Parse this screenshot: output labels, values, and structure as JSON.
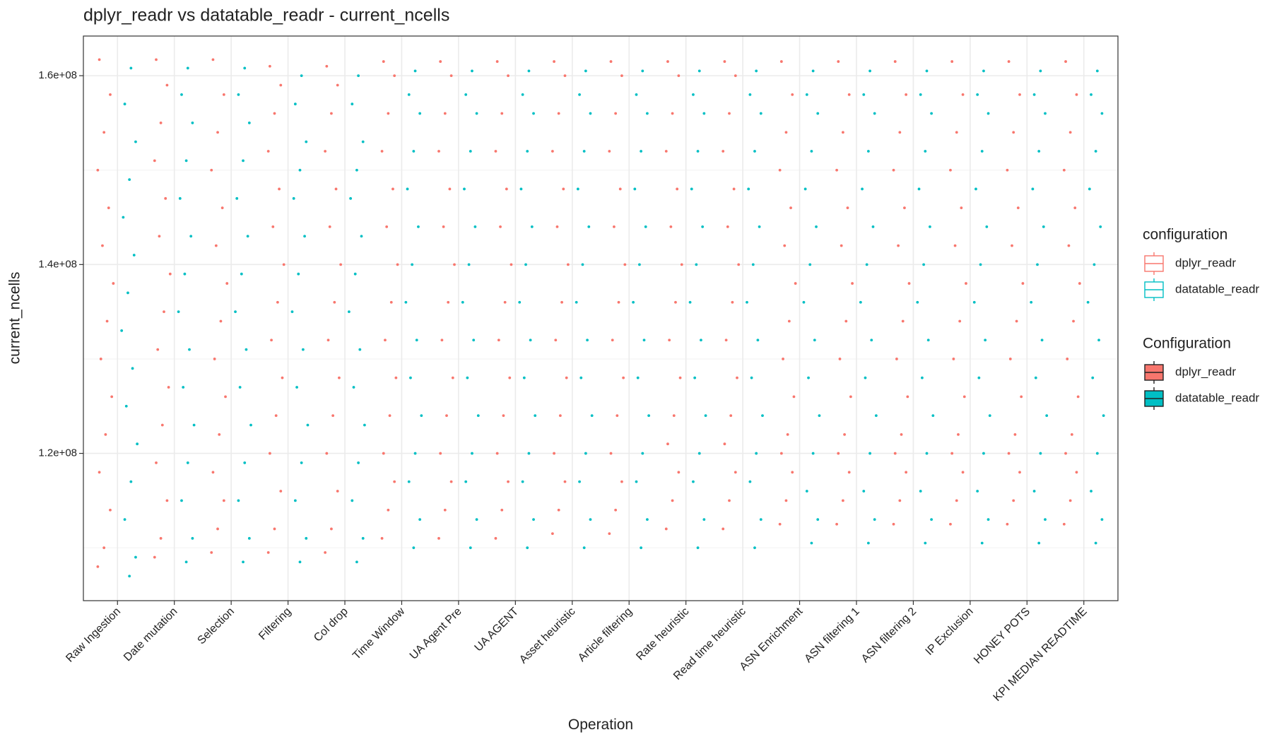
{
  "chart_data": {
    "type": "strip",
    "title": "dplyr_readr vs datatable_readr - current_ncells",
    "x_label": "Operation",
    "y_label": "current_ncells",
    "categories": [
      "Raw Ingestion",
      "Date mutation",
      "Selection",
      "Filtering",
      "Col drop",
      "Time Window",
      "UA Agent Pre",
      "UA AGENT",
      "Asset heuristic",
      "Article filtering",
      "Rate heuristic",
      "Read time heuristic",
      "ASN Enrichment",
      "ASN filtering 1",
      "ASN filtering 2",
      "IP Exclusion",
      "HONEY POTS",
      "KPI MEDIAN READTIME"
    ],
    "ylim": [
      104400000.0,
      164200000.0
    ],
    "yticks": [
      {
        "value": 120000000.0,
        "label": "1.2e+08"
      },
      {
        "value": 140000000.0,
        "label": "1.4e+08"
      },
      {
        "value": 160000000.0,
        "label": "1.6e+08"
      }
    ],
    "minor_yticks": [
      110000000.0,
      130000000.0,
      150000000.0
    ],
    "grid": true,
    "legends": [
      {
        "title": "configuration",
        "style": "outline"
      },
      {
        "title": "Configuration",
        "style": "filled"
      }
    ],
    "series": [
      {
        "name": "dplyr_readr",
        "color": "#f8766d",
        "values": [
          [
            108000000.0,
            110000000.0,
            114000000.0,
            118000000.0,
            122000000.0,
            126000000.0,
            130000000.0,
            134000000.0,
            138000000.0,
            142000000.0,
            146000000.0,
            150000000.0,
            154000000.0,
            158000000.0,
            161700000.0
          ],
          [
            109000000.0,
            111000000.0,
            115000000.0,
            119000000.0,
            123000000.0,
            127000000.0,
            131000000.0,
            135000000.0,
            139000000.0,
            143000000.0,
            147000000.0,
            151000000.0,
            155000000.0,
            159000000.0,
            161700000.0
          ],
          [
            109500000.0,
            112000000.0,
            115000000.0,
            118000000.0,
            122000000.0,
            126000000.0,
            130000000.0,
            134000000.0,
            138000000.0,
            142000000.0,
            146000000.0,
            150000000.0,
            154000000.0,
            158000000.0,
            161700000.0
          ],
          [
            109500000.0,
            112000000.0,
            116000000.0,
            120000000.0,
            124000000.0,
            128000000.0,
            132000000.0,
            136000000.0,
            140000000.0,
            144000000.0,
            148000000.0,
            152000000.0,
            156000000.0,
            159000000.0,
            161000000.0
          ],
          [
            109500000.0,
            112000000.0,
            116000000.0,
            120000000.0,
            124000000.0,
            128000000.0,
            132000000.0,
            136000000.0,
            140000000.0,
            144000000.0,
            148000000.0,
            152000000.0,
            156000000.0,
            159000000.0,
            161000000.0
          ],
          [
            111000000.0,
            114000000.0,
            117000000.0,
            120000000.0,
            124000000.0,
            128000000.0,
            132000000.0,
            136000000.0,
            140000000.0,
            144000000.0,
            148000000.0,
            152000000.0,
            156000000.0,
            160000000.0,
            161500000.0
          ],
          [
            111000000.0,
            114000000.0,
            117000000.0,
            120000000.0,
            124000000.0,
            128000000.0,
            132000000.0,
            136000000.0,
            140000000.0,
            144000000.0,
            148000000.0,
            152000000.0,
            156000000.0,
            160000000.0,
            161500000.0
          ],
          [
            111000000.0,
            114000000.0,
            117000000.0,
            120000000.0,
            124000000.0,
            128000000.0,
            132000000.0,
            136000000.0,
            140000000.0,
            144000000.0,
            148000000.0,
            152000000.0,
            156000000.0,
            160000000.0,
            161500000.0
          ],
          [
            111500000.0,
            114000000.0,
            117000000.0,
            120000000.0,
            124000000.0,
            128000000.0,
            132000000.0,
            136000000.0,
            140000000.0,
            144000000.0,
            148000000.0,
            152000000.0,
            156000000.0,
            160000000.0,
            161500000.0
          ],
          [
            111500000.0,
            114000000.0,
            117000000.0,
            120000000.0,
            124000000.0,
            128000000.0,
            132000000.0,
            136000000.0,
            140000000.0,
            144000000.0,
            148000000.0,
            152000000.0,
            156000000.0,
            160000000.0,
            161500000.0
          ],
          [
            112000000.0,
            115000000.0,
            118000000.0,
            121000000.0,
            124000000.0,
            128000000.0,
            132000000.0,
            136000000.0,
            140000000.0,
            144000000.0,
            148000000.0,
            152000000.0,
            156000000.0,
            160000000.0,
            161500000.0
          ],
          [
            112000000.0,
            115000000.0,
            118000000.0,
            121000000.0,
            124000000.0,
            128000000.0,
            132000000.0,
            136000000.0,
            140000000.0,
            144000000.0,
            148000000.0,
            152000000.0,
            156000000.0,
            160000000.0,
            161500000.0
          ],
          [
            112500000.0,
            115000000.0,
            118000000.0,
            120000000.0,
            122000000.0,
            126000000.0,
            130000000.0,
            134000000.0,
            138000000.0,
            142000000.0,
            146000000.0,
            150000000.0,
            154000000.0,
            158000000.0,
            161500000.0
          ],
          [
            112500000.0,
            115000000.0,
            118000000.0,
            120000000.0,
            122000000.0,
            126000000.0,
            130000000.0,
            134000000.0,
            138000000.0,
            142000000.0,
            146000000.0,
            150000000.0,
            154000000.0,
            158000000.0,
            161500000.0
          ],
          [
            112500000.0,
            115000000.0,
            118000000.0,
            120000000.0,
            122000000.0,
            126000000.0,
            130000000.0,
            134000000.0,
            138000000.0,
            142000000.0,
            146000000.0,
            150000000.0,
            154000000.0,
            158000000.0,
            161500000.0
          ],
          [
            112500000.0,
            115000000.0,
            118000000.0,
            120000000.0,
            122000000.0,
            126000000.0,
            130000000.0,
            134000000.0,
            138000000.0,
            142000000.0,
            146000000.0,
            150000000.0,
            154000000.0,
            158000000.0,
            161500000.0
          ],
          [
            112500000.0,
            115000000.0,
            118000000.0,
            120000000.0,
            122000000.0,
            126000000.0,
            130000000.0,
            134000000.0,
            138000000.0,
            142000000.0,
            146000000.0,
            150000000.0,
            154000000.0,
            158000000.0,
            161500000.0
          ],
          [
            112500000.0,
            115000000.0,
            118000000.0,
            120000000.0,
            122000000.0,
            126000000.0,
            130000000.0,
            134000000.0,
            138000000.0,
            142000000.0,
            146000000.0,
            150000000.0,
            154000000.0,
            158000000.0,
            161500000.0
          ]
        ]
      },
      {
        "name": "datatable_readr",
        "color": "#00bfc4",
        "values": [
          [
            107000000.0,
            109000000.0,
            113000000.0,
            117000000.0,
            121000000.0,
            125000000.0,
            129000000.0,
            133000000.0,
            137000000.0,
            141000000.0,
            145000000.0,
            149000000.0,
            153000000.0,
            157000000.0,
            160800000.0
          ],
          [
            108500000.0,
            111000000.0,
            115000000.0,
            119000000.0,
            123000000.0,
            127000000.0,
            131000000.0,
            135000000.0,
            139000000.0,
            143000000.0,
            147000000.0,
            151000000.0,
            155000000.0,
            158000000.0,
            160800000.0
          ],
          [
            108500000.0,
            111000000.0,
            115000000.0,
            119000000.0,
            123000000.0,
            127000000.0,
            131000000.0,
            135000000.0,
            139000000.0,
            143000000.0,
            147000000.0,
            151000000.0,
            155000000.0,
            158000000.0,
            160800000.0
          ],
          [
            108500000.0,
            111000000.0,
            115000000.0,
            119000000.0,
            123000000.0,
            127000000.0,
            131000000.0,
            135000000.0,
            139000000.0,
            143000000.0,
            147000000.0,
            150000000.0,
            153000000.0,
            157000000.0,
            160000000.0
          ],
          [
            108500000.0,
            111000000.0,
            115000000.0,
            119000000.0,
            123000000.0,
            127000000.0,
            131000000.0,
            135000000.0,
            139000000.0,
            143000000.0,
            147000000.0,
            150000000.0,
            153000000.0,
            157000000.0,
            160000000.0
          ],
          [
            110000000.0,
            113000000.0,
            117000000.0,
            120000000.0,
            124000000.0,
            128000000.0,
            132000000.0,
            136000000.0,
            140000000.0,
            144000000.0,
            148000000.0,
            152000000.0,
            156000000.0,
            158000000.0,
            160500000.0
          ],
          [
            110000000.0,
            113000000.0,
            117000000.0,
            120000000.0,
            124000000.0,
            128000000.0,
            132000000.0,
            136000000.0,
            140000000.0,
            144000000.0,
            148000000.0,
            152000000.0,
            156000000.0,
            158000000.0,
            160500000.0
          ],
          [
            110000000.0,
            113000000.0,
            117000000.0,
            120000000.0,
            124000000.0,
            128000000.0,
            132000000.0,
            136000000.0,
            140000000.0,
            144000000.0,
            148000000.0,
            152000000.0,
            156000000.0,
            158000000.0,
            160500000.0
          ],
          [
            110000000.0,
            113000000.0,
            117000000.0,
            120000000.0,
            124000000.0,
            128000000.0,
            132000000.0,
            136000000.0,
            140000000.0,
            144000000.0,
            148000000.0,
            152000000.0,
            156000000.0,
            158000000.0,
            160500000.0
          ],
          [
            110000000.0,
            113000000.0,
            117000000.0,
            120000000.0,
            124000000.0,
            128000000.0,
            132000000.0,
            136000000.0,
            140000000.0,
            144000000.0,
            148000000.0,
            152000000.0,
            156000000.0,
            158000000.0,
            160500000.0
          ],
          [
            110000000.0,
            113000000.0,
            117000000.0,
            120000000.0,
            124000000.0,
            128000000.0,
            132000000.0,
            136000000.0,
            140000000.0,
            144000000.0,
            148000000.0,
            152000000.0,
            156000000.0,
            158000000.0,
            160500000.0
          ],
          [
            110000000.0,
            113000000.0,
            117000000.0,
            120000000.0,
            124000000.0,
            128000000.0,
            132000000.0,
            136000000.0,
            140000000.0,
            144000000.0,
            148000000.0,
            152000000.0,
            156000000.0,
            158000000.0,
            160500000.0
          ],
          [
            110500000.0,
            113000000.0,
            116000000.0,
            120000000.0,
            124000000.0,
            128000000.0,
            132000000.0,
            136000000.0,
            140000000.0,
            144000000.0,
            148000000.0,
            152000000.0,
            156000000.0,
            158000000.0,
            160500000.0
          ],
          [
            110500000.0,
            113000000.0,
            116000000.0,
            120000000.0,
            124000000.0,
            128000000.0,
            132000000.0,
            136000000.0,
            140000000.0,
            144000000.0,
            148000000.0,
            152000000.0,
            156000000.0,
            158000000.0,
            160500000.0
          ],
          [
            110500000.0,
            113000000.0,
            116000000.0,
            120000000.0,
            124000000.0,
            128000000.0,
            132000000.0,
            136000000.0,
            140000000.0,
            144000000.0,
            148000000.0,
            152000000.0,
            156000000.0,
            158000000.0,
            160500000.0
          ],
          [
            110500000.0,
            113000000.0,
            116000000.0,
            120000000.0,
            124000000.0,
            128000000.0,
            132000000.0,
            136000000.0,
            140000000.0,
            144000000.0,
            148000000.0,
            152000000.0,
            156000000.0,
            158000000.0,
            160500000.0
          ],
          [
            110500000.0,
            113000000.0,
            116000000.0,
            120000000.0,
            124000000.0,
            128000000.0,
            132000000.0,
            136000000.0,
            140000000.0,
            144000000.0,
            148000000.0,
            152000000.0,
            156000000.0,
            158000000.0,
            160500000.0
          ],
          [
            110500000.0,
            113000000.0,
            116000000.0,
            120000000.0,
            124000000.0,
            128000000.0,
            132000000.0,
            136000000.0,
            140000000.0,
            144000000.0,
            148000000.0,
            152000000.0,
            156000000.0,
            158000000.0,
            160500000.0
          ]
        ]
      }
    ]
  }
}
